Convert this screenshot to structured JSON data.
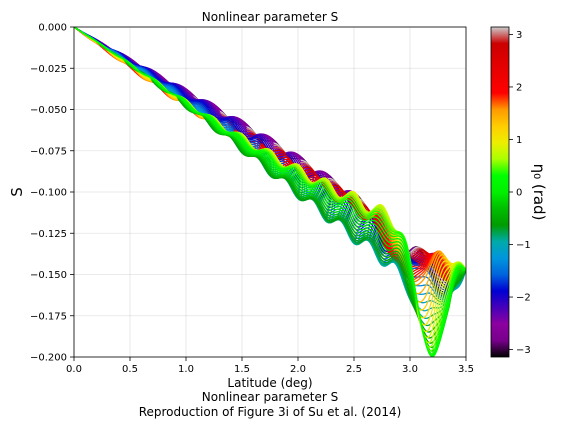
{
  "chart_data": {
    "type": "line",
    "title": "Nonlinear parameter S",
    "xlabel": "Latitude (deg)",
    "ylabel": "S",
    "xlim": [
      0.0,
      3.5
    ],
    "ylim": [
      -0.2,
      0.0
    ],
    "x_ticks": [
      0.0,
      0.5,
      1.0,
      1.5,
      2.0,
      2.5,
      3.0,
      3.5
    ],
    "x_tick_labels": [
      "0.0",
      "0.5",
      "1.0",
      "1.5",
      "2.0",
      "2.5",
      "3.0",
      "3.5"
    ],
    "y_ticks": [
      0.0,
      -0.025,
      -0.05,
      -0.075,
      -0.1,
      -0.125,
      -0.15,
      -0.175,
      -0.2
    ],
    "y_tick_labels": [
      "0.000",
      "−0.025",
      "−0.050",
      "−0.075",
      "−0.100",
      "−0.125",
      "−0.150",
      "−0.175",
      "−0.200"
    ],
    "grid": true,
    "colormap": "nipy_spectral",
    "colorbar": {
      "label": "η₀ (rad)",
      "range": [
        -3.14159,
        3.14159
      ],
      "ticks": [
        -3,
        -2,
        -1,
        0,
        1,
        2,
        3
      ],
      "tick_labels": [
        "−3",
        "−2",
        "−1",
        "0",
        "1",
        "2",
        "3"
      ]
    },
    "series_count": 60,
    "eta0_values": [
      -3.14159,
      -3.0351,
      -2.9286,
      -2.8221,
      -2.7156,
      -2.6091,
      -2.5026,
      -2.3961,
      -2.2896,
      -2.1831,
      -2.0766,
      -1.9701,
      -1.8636,
      -1.7571,
      -1.6506,
      -1.5441,
      -1.4376,
      -1.3311,
      -1.2246,
      -1.1181,
      -1.0116,
      -0.9051,
      -0.7986,
      -0.6921,
      -0.5856,
      -0.4791,
      -0.3726,
      -0.2661,
      -0.1597,
      -0.0532,
      0.0532,
      0.1597,
      0.2661,
      0.3726,
      0.4791,
      0.5856,
      0.6921,
      0.7986,
      0.9051,
      1.0116,
      1.1181,
      1.2246,
      1.3311,
      1.4376,
      1.5441,
      1.6506,
      1.7571,
      1.8636,
      1.9701,
      2.0766,
      2.1831,
      2.2896,
      2.3961,
      2.5026,
      2.6091,
      2.7156,
      2.8221,
      2.9286,
      3.0351,
      3.14159
    ],
    "curve_model": {
      "trend_start": [
        0.0,
        0.0
      ],
      "trend_end_eta0_0": [
        3.5,
        -0.147
      ],
      "oscillation_amplitude": 0.006,
      "oscillation_period_deg": 0.25,
      "final_minimum": [
        3.2,
        -0.18
      ]
    }
  },
  "caption": {
    "line1": "Nonlinear parameter S",
    "line2": "Reproduction of Figure 3i of Su et al. (2014)"
  }
}
